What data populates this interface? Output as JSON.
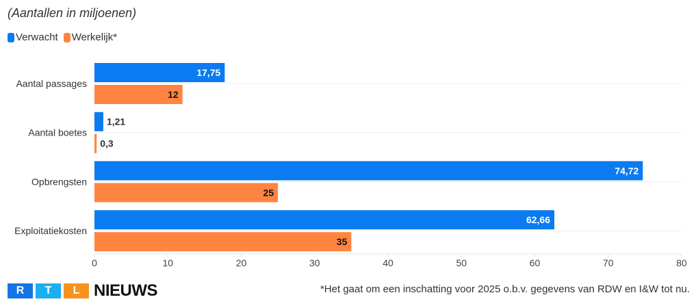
{
  "chart_data": {
    "type": "bar",
    "orientation": "horizontal",
    "subtitle": "(Aantallen in miljoenen)",
    "categories": [
      "Aantal passages",
      "Aantal boetes",
      "Opbrengsten",
      "Exploitatiekosten"
    ],
    "series": [
      {
        "name": "Verwacht",
        "color": "#0a7bf0",
        "values": [
          17.75,
          1.21,
          74.72,
          62.66
        ],
        "labels": [
          "17,75",
          "1,21",
          "74,72",
          "62,66"
        ]
      },
      {
        "name": "Werkelijk*",
        "color": "#ff8442",
        "values": [
          12,
          0.3,
          25,
          35
        ],
        "labels": [
          "12",
          "0,3",
          "25",
          "35"
        ]
      }
    ],
    "xlim": [
      0,
      80
    ],
    "xticks": [
      "0",
      "10",
      "20",
      "30",
      "40",
      "50",
      "60",
      "70",
      "80"
    ],
    "grid": false,
    "legend": "top-left"
  },
  "footnote": "*Het gaat om een inschatting voor 2025 o.b.v. gegevens van RDW en I&W tot nu.",
  "logo": {
    "letters": [
      "R",
      "T",
      "L"
    ],
    "word": "NIEUWS",
    "colors": [
      "#1575e6",
      "#1ab0f0",
      "#f7941d"
    ]
  }
}
